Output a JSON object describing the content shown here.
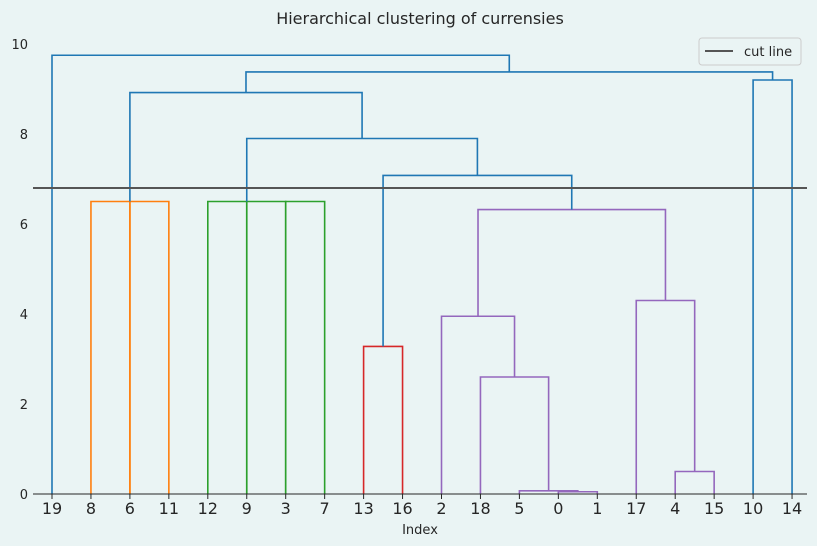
{
  "chart_data": {
    "type": "dendrogram",
    "title": "Hierarchical clustering of currensies",
    "xlabel": "Index",
    "ylabel": "",
    "ylim": [
      0,
      10
    ],
    "yticks": [
      0,
      2,
      4,
      6,
      8,
      10
    ],
    "leaf_order": [
      "19",
      "8",
      "6",
      "11",
      "12",
      "9",
      "3",
      "7",
      "13",
      "16",
      "2",
      "18",
      "5",
      "0",
      "1",
      "17",
      "4",
      "15",
      "10",
      "14"
    ],
    "cut_line": {
      "label": "cut line",
      "y": 6.8,
      "color": "#555555"
    },
    "legend": {
      "position": "top-right",
      "entries": [
        "cut line"
      ]
    },
    "grid": false,
    "colors": {
      "above": "#1f77b4",
      "orange": "#ff7f0e",
      "green": "#2ca02c",
      "red": "#d62728",
      "purple": "#9467bd"
    },
    "merges": [
      {
        "left": 13,
        "right": 14,
        "height": 0.05,
        "color": "purple"
      },
      {
        "left": 12,
        "right": 13.5,
        "height": 0.07,
        "color": "purple"
      },
      {
        "left": 16,
        "right": 17,
        "height": 0.5,
        "color": "purple"
      },
      {
        "left": 11,
        "right": 12.75,
        "height": 2.6,
        "color": "purple"
      },
      {
        "left": 8,
        "right": 9,
        "height": 3.28,
        "color": "red"
      },
      {
        "left": 10,
        "right": 11.875,
        "height": 3.95,
        "color": "purple"
      },
      {
        "left": 15,
        "right": 16.5,
        "height": 4.3,
        "color": "purple"
      },
      {
        "left": 10.9375,
        "right": 15.75,
        "height": 6.32,
        "color": "purple"
      },
      {
        "left": 1,
        "right": 2,
        "height": 6.5,
        "color": "orange"
      },
      {
        "left": 2,
        "right": 3,
        "height": 6.5,
        "color": "orange"
      },
      {
        "left": 4,
        "right": 5,
        "height": 6.5,
        "color": "green"
      },
      {
        "left": 5,
        "right": 6,
        "height": 6.5,
        "color": "green"
      },
      {
        "left": 6,
        "right": 7,
        "height": 6.5,
        "color": "green"
      },
      {
        "left": 8.5,
        "right": 13.34375,
        "height": 7.08,
        "color": "above"
      },
      {
        "left": 5,
        "right": 10.921875,
        "height": 7.9,
        "color": "above"
      },
      {
        "left": 18,
        "right": 19,
        "height": 9.2,
        "color": "above"
      },
      {
        "left": 2,
        "right": 7.9609375,
        "height": 8.92,
        "color": "above"
      },
      {
        "left": 4.98046875,
        "right": 18.5,
        "height": 9.38,
        "color": "above"
      },
      {
        "left": 0,
        "right": 11.740234375,
        "height": 9.75,
        "color": "above"
      }
    ],
    "merge_bottoms": [
      [
        0,
        0
      ],
      [
        0,
        0.05
      ],
      [
        0,
        0
      ],
      [
        0,
        0.07
      ],
      [
        0,
        0
      ],
      [
        0,
        2.6
      ],
      [
        0,
        0.5
      ],
      [
        3.95,
        4.3
      ],
      [
        0,
        0
      ],
      [
        0,
        0
      ],
      [
        0,
        0
      ],
      [
        0,
        0
      ],
      [
        0,
        0
      ],
      [
        3.28,
        6.32
      ],
      [
        6.5,
        7.08
      ],
      [
        0,
        0
      ],
      [
        6.5,
        7.9
      ],
      [
        8.92,
        9.2
      ],
      [
        0,
        9.38
      ]
    ]
  }
}
